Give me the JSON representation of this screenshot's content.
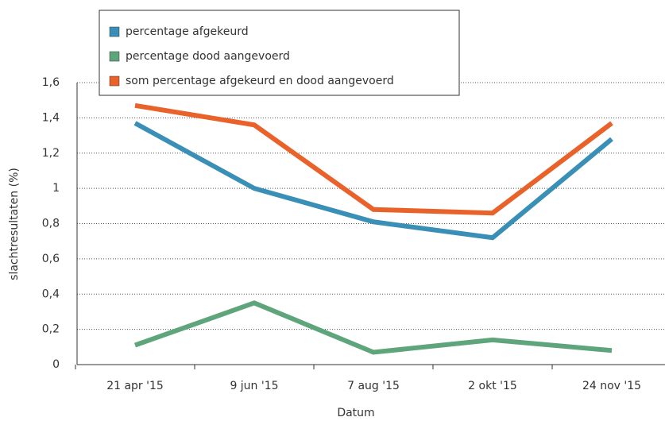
{
  "chart_data": {
    "type": "line",
    "categories": [
      "21 apr '15",
      "9 jun '15",
      "7 aug '15",
      "2 okt '15",
      "24 nov '15"
    ],
    "series": [
      {
        "name": "percentage afgekeurd",
        "color": "#3a8fb7",
        "values": [
          1.37,
          1.0,
          0.81,
          0.72,
          1.28
        ]
      },
      {
        "name": "percentage dood aangevoerd",
        "color": "#5fa57c",
        "values": [
          0.11,
          0.35,
          0.07,
          0.14,
          0.08
        ]
      },
      {
        "name": "som percentage afgekeurd en dood aangevoerd",
        "color": "#e8622a",
        "values": [
          1.47,
          1.36,
          0.88,
          0.86,
          1.37
        ]
      }
    ],
    "ylim": [
      0,
      1.6
    ],
    "yticks": [
      0,
      {
        "value": 0.2,
        "label": "0,2"
      },
      {
        "value": 0.4,
        "label": "0,4"
      },
      {
        "value": 0.6,
        "label": "0,6"
      },
      {
        "value": 0.8,
        "label": "0,8"
      },
      1,
      {
        "value": 1.2,
        "label": "1,2"
      },
      {
        "value": 1.4,
        "label": "1,4"
      },
      {
        "value": 1.6,
        "label": "1,6"
      }
    ],
    "xlabel": "Datum",
    "ylabel": "slachtresultaten (%)",
    "grid": true,
    "legend": "top"
  }
}
